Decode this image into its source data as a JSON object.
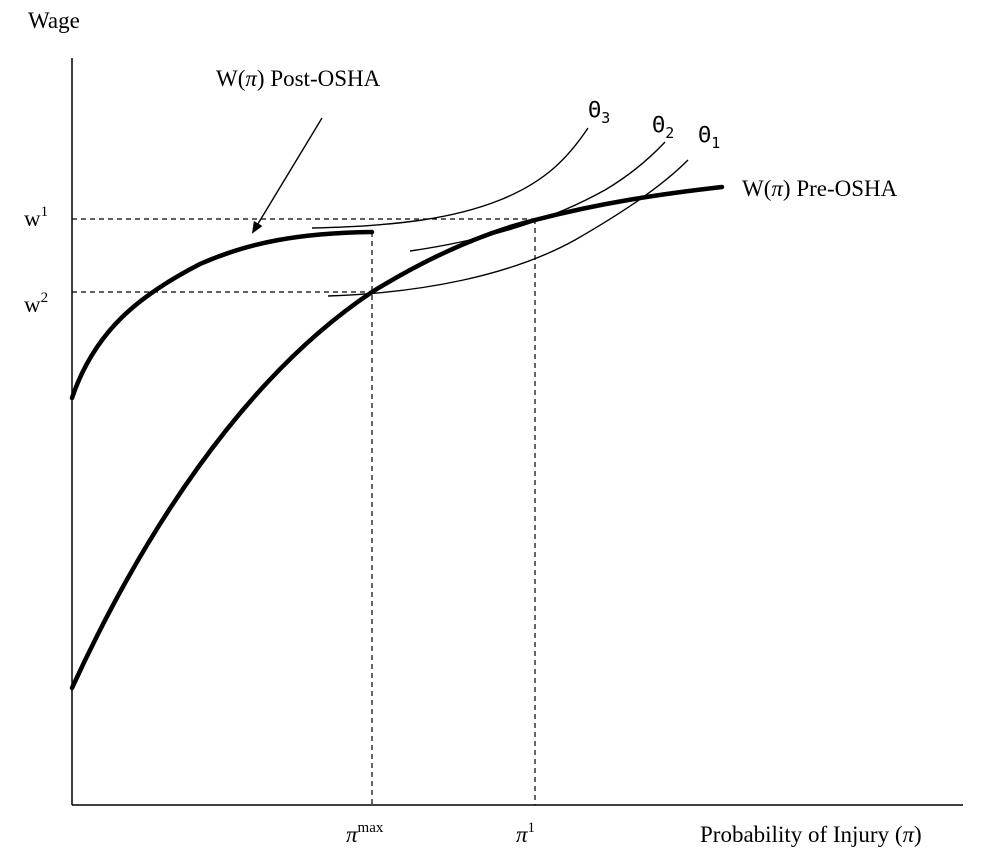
{
  "labels": {
    "y_axis": "Wage",
    "x_axis_main": "Probability of Injury (",
    "x_axis_symbol": "π",
    "x_axis_close": ")",
    "w1_base": "w",
    "w1_sup": "1",
    "w2_base": "w",
    "w2_sup": "2",
    "pi_max_base": "π",
    "pi_max_sup": "max",
    "pi1_base": "π",
    "pi1_sup": "1",
    "post_osha_w": "W(",
    "post_osha_pi": "π",
    "post_osha_rest": ") Post-OSHA",
    "pre_osha_w": "W(",
    "pre_osha_pi": "π",
    "pre_osha_rest": ") Pre-OSHA",
    "theta_symbol": "Θ",
    "theta3_sub": "3",
    "theta2_sub": "2",
    "theta1_sub": "1"
  },
  "curves": {
    "post_osha": "W(π) Post-OSHA",
    "pre_osha": "W(π) Pre-OSHA",
    "indifference": [
      "Θ3",
      "Θ2",
      "Θ1"
    ]
  }
}
